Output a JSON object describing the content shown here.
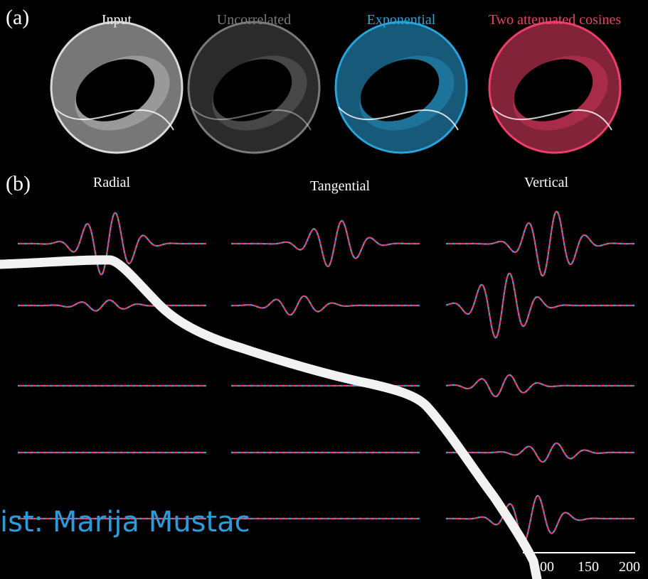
{
  "panel_a": {
    "label": "(a)",
    "models": [
      {
        "title": "Input",
        "color": "#d9d9d9"
      },
      {
        "title": "Uncorrelated",
        "color": "#7a7a7a"
      },
      {
        "title": "Exponential",
        "color": "#2aa3db"
      },
      {
        "title": "Two attenuated cosines",
        "color": "#ee3f6a"
      }
    ]
  },
  "panel_b": {
    "label": "(b)",
    "components": [
      "Radial",
      "Tangential",
      "Vertical"
    ],
    "x_ticks": [
      "100",
      "150",
      "200"
    ],
    "trace_colors": {
      "model_a": "#ee3f6a",
      "model_b": "#2aa3db"
    }
  },
  "caption": "ist: Marija Mustac"
}
